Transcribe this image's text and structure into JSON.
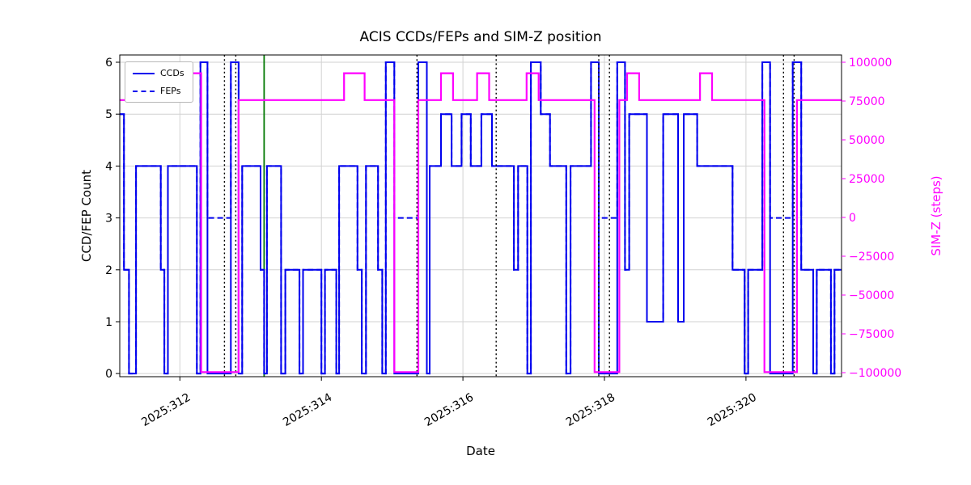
{
  "chart_data": {
    "type": "line",
    "subtype": "step",
    "title": "ACIS CCDs/FEPs and SIM-Z position",
    "xlabel": "Date",
    "ylabel_left": "CCD/FEP Count",
    "ylabel_right": "SIM-Z (steps)",
    "legend": [
      {
        "label": "CCDs",
        "style": "solid"
      },
      {
        "label": "FEPs",
        "style": "dashed"
      }
    ],
    "grid": true,
    "plot": {
      "l": 148,
      "t": 68,
      "r": 1040,
      "b": 466
    },
    "x_range": [
      311.15,
      321.35
    ],
    "x_ticks": [
      {
        "v": 312,
        "label": "2025:312"
      },
      {
        "v": 314,
        "label": "2025:314"
      },
      {
        "v": 316,
        "label": "2025:316"
      },
      {
        "v": 318,
        "label": "2025:318"
      },
      {
        "v": 320,
        "label": "2025:320"
      }
    ],
    "y_left": {
      "range": [
        -0.06,
        6.14
      ],
      "ticks": [
        {
          "v": 0,
          "label": "0"
        },
        {
          "v": 1,
          "label": "1"
        },
        {
          "v": 2,
          "label": "2"
        },
        {
          "v": 3,
          "label": "3"
        },
        {
          "v": 4,
          "label": "4"
        },
        {
          "v": 5,
          "label": "5"
        },
        {
          "v": 6,
          "label": "6"
        }
      ]
    },
    "y_right": {
      "range": [
        -102600,
        104700
      ],
      "ticks": [
        {
          "v": 100000,
          "label": "100000"
        },
        {
          "v": 75000,
          "label": "75000"
        },
        {
          "v": 50000,
          "label": "50000"
        },
        {
          "v": 25000,
          "label": "25000"
        },
        {
          "v": 0,
          "label": "0"
        },
        {
          "v": -25000,
          "label": "−25000"
        },
        {
          "v": -50000,
          "label": "−50000"
        },
        {
          "v": -75000,
          "label": "−75000"
        },
        {
          "v": -100000,
          "label": "−100000"
        }
      ]
    },
    "colors": {
      "blue": "#0000ee",
      "magenta": "#ff00ff",
      "green": "#007800",
      "dotted": "#000000",
      "grid": "#d2d2d2",
      "frame": "#000000"
    },
    "series": {
      "ccds": {
        "name": "CCDs",
        "points": [
          [
            311.15,
            5
          ],
          [
            311.21,
            2
          ],
          [
            311.28,
            0
          ],
          [
            311.38,
            4
          ],
          [
            311.73,
            2
          ],
          [
            311.78,
            0
          ],
          [
            311.83,
            4
          ],
          [
            312.24,
            0
          ],
          [
            312.29,
            6
          ],
          [
            312.39,
            0
          ],
          [
            312.72,
            6
          ],
          [
            312.83,
            0
          ],
          [
            312.88,
            4
          ],
          [
            313.14,
            2
          ],
          [
            313.19,
            0
          ],
          [
            313.23,
            4
          ],
          [
            313.43,
            0
          ],
          [
            313.49,
            2
          ],
          [
            313.69,
            0
          ],
          [
            313.74,
            2
          ],
          [
            314.0,
            0
          ],
          [
            314.05,
            2
          ],
          [
            314.21,
            0
          ],
          [
            314.25,
            4
          ],
          [
            314.51,
            2
          ],
          [
            314.57,
            0
          ],
          [
            314.63,
            4
          ],
          [
            314.8,
            2
          ],
          [
            314.86,
            0
          ],
          [
            314.91,
            6
          ],
          [
            315.03,
            0
          ],
          [
            315.37,
            6
          ],
          [
            315.49,
            0
          ],
          [
            315.53,
            4
          ],
          [
            315.69,
            5
          ],
          [
            315.84,
            4
          ],
          [
            315.98,
            5
          ],
          [
            316.11,
            4
          ],
          [
            316.26,
            5
          ],
          [
            316.41,
            4
          ],
          [
            316.72,
            2
          ],
          [
            316.78,
            4
          ],
          [
            316.91,
            0
          ],
          [
            316.96,
            6
          ],
          [
            317.1,
            5
          ],
          [
            317.23,
            4
          ],
          [
            317.46,
            0
          ],
          [
            317.52,
            4
          ],
          [
            317.81,
            6
          ],
          [
            317.92,
            0
          ],
          [
            318.18,
            6
          ],
          [
            318.29,
            2
          ],
          [
            318.35,
            5
          ],
          [
            318.6,
            1
          ],
          [
            318.83,
            5
          ],
          [
            319.04,
            1
          ],
          [
            319.12,
            5
          ],
          [
            319.31,
            4
          ],
          [
            319.81,
            2
          ],
          [
            319.98,
            0
          ],
          [
            320.03,
            2
          ],
          [
            320.23,
            6
          ],
          [
            320.34,
            0
          ],
          [
            320.66,
            6
          ],
          [
            320.78,
            2
          ],
          [
            320.95,
            0
          ],
          [
            321.0,
            2
          ],
          [
            321.2,
            0
          ],
          [
            321.25,
            2
          ]
        ]
      },
      "feps": {
        "name": "FEPs",
        "points": [
          [
            311.15,
            5
          ],
          [
            311.21,
            2
          ],
          [
            311.28,
            0
          ],
          [
            311.38,
            4
          ],
          [
            311.73,
            2
          ],
          [
            311.78,
            0
          ],
          [
            311.83,
            4
          ],
          [
            312.24,
            0
          ],
          [
            312.29,
            6
          ],
          [
            312.39,
            3
          ],
          [
            312.72,
            6
          ],
          [
            312.83,
            0
          ],
          [
            312.88,
            4
          ],
          [
            313.14,
            2
          ],
          [
            313.19,
            0
          ],
          [
            313.23,
            4
          ],
          [
            313.43,
            0
          ],
          [
            313.49,
            2
          ],
          [
            313.69,
            0
          ],
          [
            313.74,
            2
          ],
          [
            314.0,
            0
          ],
          [
            314.05,
            2
          ],
          [
            314.21,
            0
          ],
          [
            314.25,
            4
          ],
          [
            314.51,
            2
          ],
          [
            314.57,
            0
          ],
          [
            314.63,
            4
          ],
          [
            314.8,
            2
          ],
          [
            314.86,
            0
          ],
          [
            314.91,
            6
          ],
          [
            315.03,
            3
          ],
          [
            315.37,
            6
          ],
          [
            315.49,
            0
          ],
          [
            315.53,
            4
          ],
          [
            315.69,
            5
          ],
          [
            315.84,
            4
          ],
          [
            315.98,
            5
          ],
          [
            316.11,
            4
          ],
          [
            316.26,
            5
          ],
          [
            316.41,
            4
          ],
          [
            316.72,
            2
          ],
          [
            316.78,
            4
          ],
          [
            316.91,
            0
          ],
          [
            316.96,
            6
          ],
          [
            317.1,
            5
          ],
          [
            317.23,
            4
          ],
          [
            317.46,
            0
          ],
          [
            317.52,
            4
          ],
          [
            317.81,
            6
          ],
          [
            317.92,
            3
          ],
          [
            318.18,
            6
          ],
          [
            318.29,
            2
          ],
          [
            318.35,
            5
          ],
          [
            318.6,
            1
          ],
          [
            318.83,
            5
          ],
          [
            319.04,
            1
          ],
          [
            319.12,
            5
          ],
          [
            319.31,
            4
          ],
          [
            319.81,
            2
          ],
          [
            319.98,
            0
          ],
          [
            320.03,
            2
          ],
          [
            320.23,
            6
          ],
          [
            320.34,
            3
          ],
          [
            320.66,
            6
          ],
          [
            320.78,
            2
          ],
          [
            320.95,
            0
          ],
          [
            321.0,
            2
          ],
          [
            321.2,
            0
          ],
          [
            321.25,
            2
          ]
        ]
      },
      "simz": {
        "name": "SIM-Z",
        "points": [
          [
            311.15,
            75624
          ],
          [
            312.09,
            92904
          ],
          [
            312.3,
            -99612
          ],
          [
            312.83,
            75624
          ],
          [
            314.32,
            92904
          ],
          [
            314.61,
            75624
          ],
          [
            315.03,
            -99612
          ],
          [
            315.37,
            75624
          ],
          [
            315.69,
            92904
          ],
          [
            315.86,
            75624
          ],
          [
            316.2,
            92904
          ],
          [
            316.37,
            75624
          ],
          [
            316.9,
            92904
          ],
          [
            317.07,
            75624
          ],
          [
            317.86,
            -99612
          ],
          [
            318.21,
            75624
          ],
          [
            318.32,
            92904
          ],
          [
            318.49,
            75624
          ],
          [
            319.35,
            92904
          ],
          [
            319.52,
            75624
          ],
          [
            320.26,
            -99612
          ],
          [
            320.72,
            75624
          ]
        ]
      }
    },
    "vlines": {
      "dotted_black": [
        312.63,
        312.79,
        315.35,
        316.47,
        317.92,
        318.07,
        320.53,
        320.68
      ],
      "solid_green": [
        313.19
      ]
    }
  }
}
